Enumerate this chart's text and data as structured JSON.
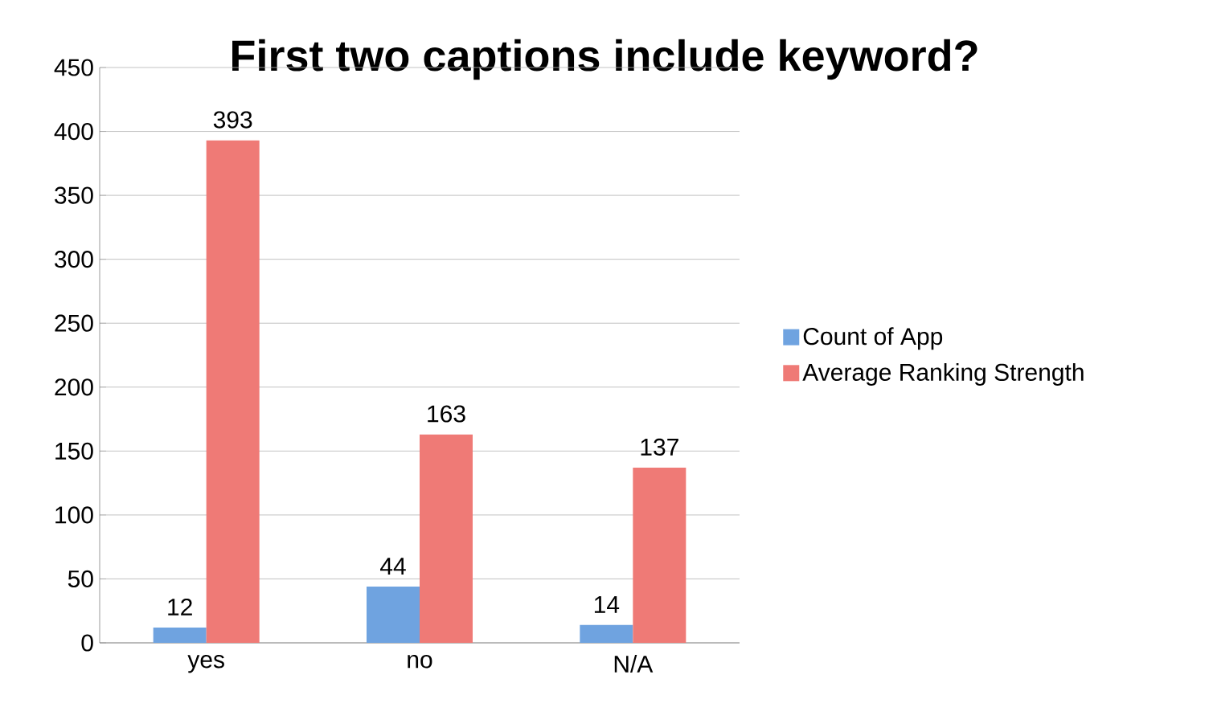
{
  "chart_data": {
    "type": "bar",
    "title": "First two captions include keyword?",
    "categories": [
      "yes",
      "no",
      "N/A"
    ],
    "series": [
      {
        "name": "Count of App",
        "color": "#6fa3e0",
        "values": [
          12,
          44,
          14
        ]
      },
      {
        "name": "Average Ranking Strength",
        "color": "#ef7a76",
        "values": [
          393,
          163,
          137
        ]
      }
    ],
    "ylim": [
      0,
      450
    ],
    "yticks": [
      0,
      50,
      100,
      150,
      200,
      250,
      300,
      350,
      400,
      450
    ],
    "grid": "y",
    "legend": "right",
    "data_labels": true
  }
}
